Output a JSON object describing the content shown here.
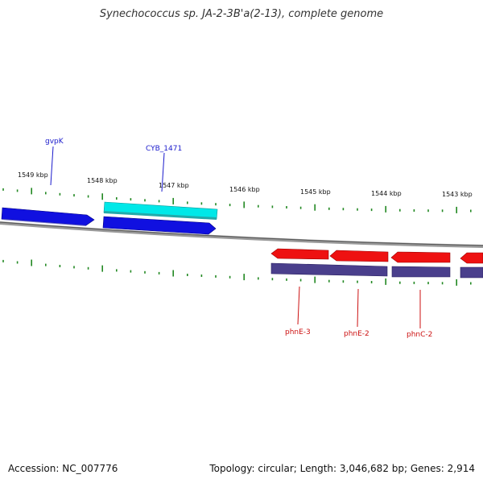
{
  "title": "Synechococcus sp. JA-2-3B'a(2-13), complete genome",
  "footer": {
    "accession": "Accession: NC_007776",
    "summary": "Topology: circular; Length: 3,046,682 bp; Genes: 2,914"
  },
  "colors": {
    "forward_gene": "#1010e0",
    "forward_cds_top": "#00e8e8",
    "reverse_gene": "#ee1111",
    "reverse_cds": "#4a3f8c",
    "ticks": "#228822",
    "backbone": "#888888",
    "forward_label": "#1a1acc",
    "reverse_label": "#cc1111"
  },
  "ticks": {
    "labels": [
      "1549 kbp",
      "1548 kbp",
      "1547 kbp",
      "1546 kbp",
      "1545 kbp",
      "1544 kbp",
      "1543 kbp"
    ]
  },
  "genes": {
    "forward": [
      {
        "label": "gvpK"
      },
      {
        "label": "CYB_1471"
      }
    ],
    "reverse": [
      {
        "label": "phnE-3"
      },
      {
        "label": "phnE-2"
      },
      {
        "label": "phnC-2"
      }
    ]
  }
}
